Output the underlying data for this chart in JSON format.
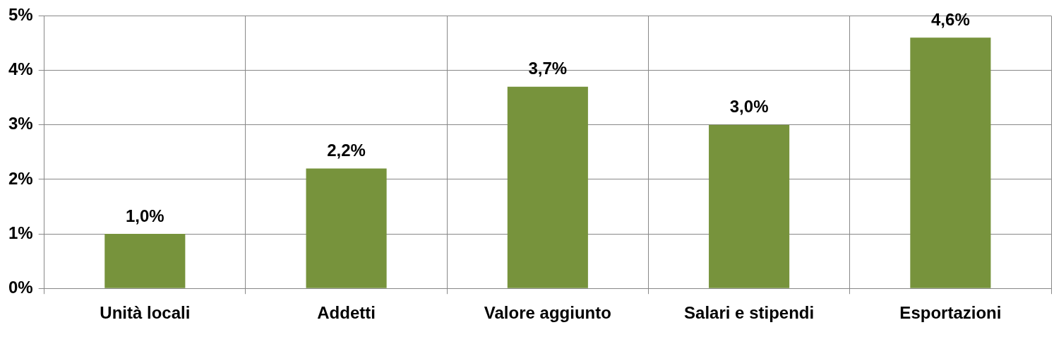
{
  "chart_data": {
    "type": "bar",
    "categories": [
      "Unità locali",
      "Addetti",
      "Valore aggiunto",
      "Salari e stipendi",
      "Esportazioni"
    ],
    "values": [
      1.0,
      2.2,
      3.7,
      3.0,
      4.6
    ],
    "value_labels": [
      "1,0%",
      "2,2%",
      "3,7%",
      "3,0%",
      "4,6%"
    ],
    "color": "#77933c",
    "ylim": [
      0,
      5
    ],
    "yticks": [
      {
        "value": 0,
        "label": "0%"
      },
      {
        "value": 1,
        "label": "1%"
      },
      {
        "value": 2,
        "label": "2%"
      },
      {
        "value": 3,
        "label": "3%"
      },
      {
        "value": 4,
        "label": "4%"
      },
      {
        "value": 5,
        "label": "5%"
      }
    ],
    "grid": true,
    "legend": false
  }
}
